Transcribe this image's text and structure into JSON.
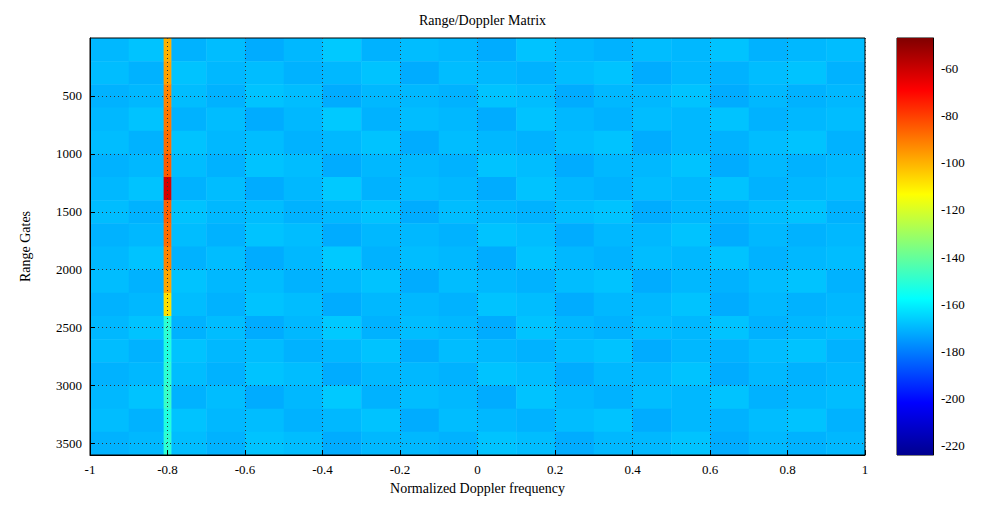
{
  "chart_data": {
    "type": "heatmap",
    "title": "Range/Doppler Matrix",
    "xlabel": "Normalized Doppler frequency",
    "ylabel": "Range Gates",
    "xlim": [
      -1,
      1
    ],
    "xticks": [
      -1,
      -0.8,
      -0.6,
      -0.4,
      -0.2,
      0,
      0.2,
      0.4,
      0.6,
      0.8,
      1
    ],
    "ylim": [
      0,
      3600
    ],
    "yticks": [
      500,
      1000,
      1500,
      2000,
      2500,
      3000,
      3500
    ],
    "grid": true,
    "x_edges": [
      -1,
      -0.9,
      -0.81,
      -0.79,
      -0.7,
      -0.6,
      -0.5,
      -0.4,
      -0.3,
      -0.2,
      -0.1,
      0,
      0.1,
      0.2,
      0.3,
      0.4,
      0.5,
      0.6,
      0.7,
      0.8,
      0.9,
      1
    ],
    "y_edges": [
      0,
      200,
      400,
      600,
      800,
      1000,
      1200,
      1400,
      1600,
      1800,
      2000,
      2200,
      2400,
      2600,
      2800,
      3000,
      3200,
      3400,
      3600
    ],
    "cells": [
      [
        -170,
        -168,
        -100,
        -171,
        -169,
        -172,
        -170,
        -167,
        -171,
        -169,
        -170,
        -172,
        -168,
        -170,
        -171,
        -169,
        -170,
        -168,
        -171,
        -170,
        -169
      ],
      [
        -169,
        -171,
        -97,
        -168,
        -170,
        -169,
        -171,
        -170,
        -168,
        -172,
        -169,
        -170,
        -171,
        -169,
        -168,
        -172,
        -170,
        -171,
        -169,
        -168,
        -171
      ],
      [
        -171,
        -170,
        -92,
        -169,
        -171,
        -168,
        -169,
        -172,
        -170,
        -170,
        -171,
        -168,
        -169,
        -172,
        -170,
        -170,
        -168,
        -172,
        -170,
        -171,
        -170
      ],
      [
        -170,
        -168,
        -90,
        -171,
        -169,
        -172,
        -170,
        -167,
        -171,
        -169,
        -170,
        -172,
        -168,
        -170,
        -171,
        -169,
        -170,
        -168,
        -171,
        -170,
        -169
      ],
      [
        -169,
        -171,
        -88,
        -168,
        -170,
        -169,
        -171,
        -170,
        -168,
        -172,
        -169,
        -170,
        -171,
        -169,
        -168,
        -172,
        -170,
        -171,
        -169,
        -168,
        -171
      ],
      [
        -171,
        -170,
        -85,
        -169,
        -171,
        -168,
        -169,
        -172,
        -170,
        -170,
        -171,
        -168,
        -169,
        -172,
        -170,
        -170,
        -168,
        -172,
        -170,
        -171,
        -170
      ],
      [
        -170,
        -168,
        -62,
        -171,
        -169,
        -172,
        -170,
        -167,
        -171,
        -169,
        -170,
        -172,
        -168,
        -170,
        -171,
        -169,
        -170,
        -168,
        -171,
        -170,
        -169
      ],
      [
        -169,
        -171,
        -86,
        -168,
        -170,
        -169,
        -171,
        -170,
        -168,
        -172,
        -169,
        -170,
        -171,
        -169,
        -168,
        -172,
        -170,
        -171,
        -169,
        -168,
        -171
      ],
      [
        -171,
        -170,
        -88,
        -169,
        -171,
        -168,
        -169,
        -172,
        -170,
        -170,
        -171,
        -168,
        -169,
        -172,
        -170,
        -170,
        -168,
        -172,
        -170,
        -171,
        -170
      ],
      [
        -170,
        -168,
        -92,
        -171,
        -169,
        -172,
        -170,
        -167,
        -171,
        -169,
        -170,
        -172,
        -168,
        -170,
        -171,
        -169,
        -170,
        -168,
        -171,
        -170,
        -169
      ],
      [
        -169,
        -171,
        -98,
        -168,
        -170,
        -169,
        -171,
        -170,
        -168,
        -172,
        -169,
        -170,
        -171,
        -169,
        -168,
        -172,
        -170,
        -171,
        -169,
        -168,
        -171
      ],
      [
        -171,
        -170,
        -108,
        -169,
        -171,
        -168,
        -169,
        -172,
        -170,
        -170,
        -171,
        -168,
        -169,
        -172,
        -170,
        -170,
        -168,
        -172,
        -170,
        -171,
        -170
      ],
      [
        -170,
        -168,
        -150,
        -171,
        -169,
        -172,
        -170,
        -167,
        -171,
        -169,
        -170,
        -172,
        -168,
        -170,
        -171,
        -169,
        -170,
        -168,
        -171,
        -170,
        -169
      ],
      [
        -169,
        -171,
        -152,
        -168,
        -170,
        -169,
        -171,
        -170,
        -168,
        -172,
        -169,
        -170,
        -171,
        -169,
        -168,
        -172,
        -170,
        -171,
        -169,
        -168,
        -171
      ],
      [
        -171,
        -170,
        -150,
        -169,
        -171,
        -168,
        -169,
        -172,
        -170,
        -170,
        -171,
        -168,
        -169,
        -172,
        -170,
        -170,
        -168,
        -172,
        -170,
        -171,
        -170
      ],
      [
        -170,
        -168,
        -148,
        -171,
        -169,
        -172,
        -170,
        -167,
        -171,
        -169,
        -170,
        -172,
        -168,
        -170,
        -171,
        -169,
        -170,
        -168,
        -171,
        -170,
        -169
      ],
      [
        -169,
        -171,
        -152,
        -168,
        -170,
        -169,
        -171,
        -170,
        -168,
        -172,
        -169,
        -170,
        -171,
        -169,
        -168,
        -172,
        -170,
        -171,
        -169,
        -168,
        -171
      ],
      [
        -171,
        -170,
        -150,
        -169,
        -171,
        -168,
        -169,
        -172,
        -170,
        -170,
        -171,
        -168,
        -169,
        -172,
        -170,
        -170,
        -168,
        -172,
        -170,
        -171,
        -170
      ]
    ],
    "colorbar_lim": [
      -224,
      -47
    ],
    "colorbar_ticks": [
      -60,
      -80,
      -100,
      -120,
      -140,
      -160,
      -180,
      -200,
      -220
    ]
  }
}
